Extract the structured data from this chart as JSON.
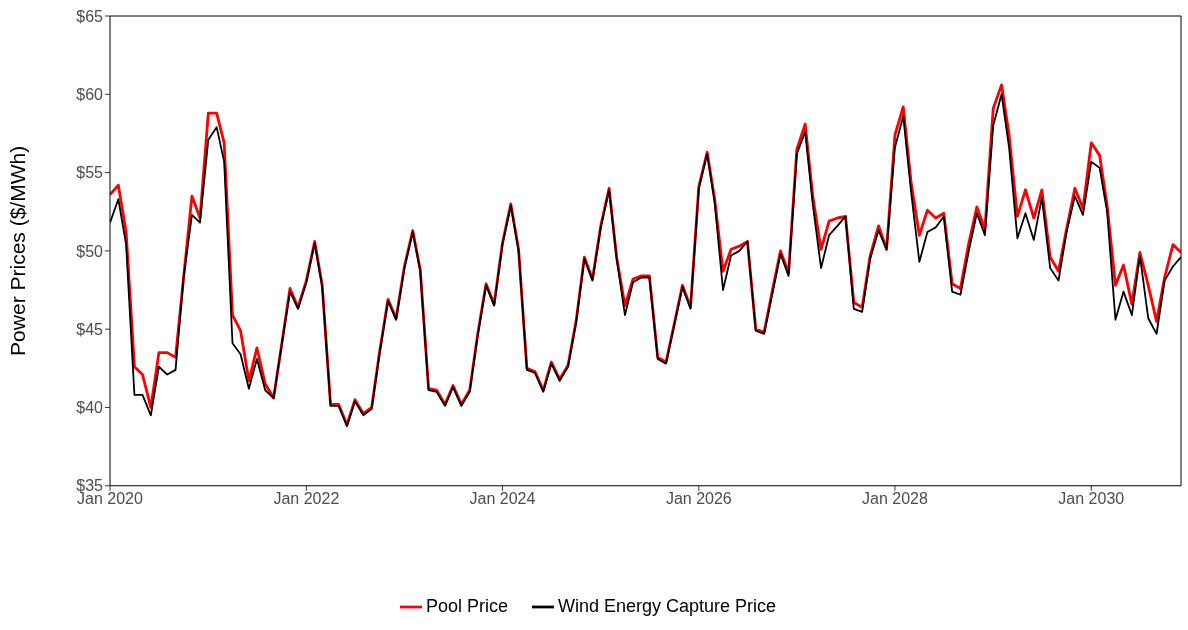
{
  "chart_data": {
    "type": "line",
    "ylabel": "Power Prices ($/MWh)",
    "x": [
      "2020-01",
      "2020-02",
      "2020-03",
      "2020-04",
      "2020-05",
      "2020-06",
      "2020-07",
      "2020-08",
      "2020-09",
      "2020-10",
      "2020-11",
      "2020-12",
      "2021-01",
      "2021-02",
      "2021-03",
      "2021-04",
      "2021-05",
      "2021-06",
      "2021-07",
      "2021-08",
      "2021-09",
      "2021-10",
      "2021-11",
      "2021-12",
      "2022-01",
      "2022-02",
      "2022-03",
      "2022-04",
      "2022-05",
      "2022-06",
      "2022-07",
      "2022-08",
      "2022-09",
      "2022-10",
      "2022-11",
      "2022-12",
      "2023-01",
      "2023-02",
      "2023-03",
      "2023-04",
      "2023-05",
      "2023-06",
      "2023-07",
      "2023-08",
      "2023-09",
      "2023-10",
      "2023-11",
      "2023-12",
      "2024-01",
      "2024-02",
      "2024-03",
      "2024-04",
      "2024-05",
      "2024-06",
      "2024-07",
      "2024-08",
      "2024-09",
      "2024-10",
      "2024-11",
      "2024-12",
      "2025-01",
      "2025-02",
      "2025-03",
      "2025-04",
      "2025-05",
      "2025-06",
      "2025-07",
      "2025-08",
      "2025-09",
      "2025-10",
      "2025-11",
      "2025-12",
      "2026-01",
      "2026-02",
      "2026-03",
      "2026-04",
      "2026-05",
      "2026-06",
      "2026-07",
      "2026-08",
      "2026-09",
      "2026-10",
      "2026-11",
      "2026-12",
      "2027-01",
      "2027-02",
      "2027-03",
      "2027-04",
      "2027-05",
      "2027-06",
      "2027-07",
      "2027-08",
      "2027-09",
      "2027-10",
      "2027-11",
      "2027-12",
      "2028-01",
      "2028-02",
      "2028-03",
      "2028-04",
      "2028-05",
      "2028-06",
      "2028-07",
      "2028-08",
      "2028-09",
      "2028-10",
      "2028-11",
      "2028-12",
      "2029-01",
      "2029-02",
      "2029-03",
      "2029-04",
      "2029-05",
      "2029-06",
      "2029-07",
      "2029-08",
      "2029-09",
      "2029-10",
      "2029-11",
      "2029-12",
      "2030-01",
      "2030-02",
      "2030-03",
      "2030-04",
      "2030-05",
      "2030-06",
      "2030-07",
      "2030-08",
      "2030-09",
      "2030-10",
      "2030-11",
      "2030-12"
    ],
    "series": [
      {
        "name": "Pool Price",
        "color": "#ff0000",
        "values": [
          53.6,
          54.2,
          51.2,
          42.6,
          42.1,
          40.0,
          43.5,
          43.5,
          43.2,
          48.3,
          53.5,
          52.1,
          58.8,
          58.8,
          56.9,
          45.9,
          44.9,
          41.7,
          43.8,
          41.5,
          40.6,
          44.0,
          47.6,
          46.4,
          48.1,
          50.6,
          47.8,
          40.2,
          40.2,
          38.9,
          40.5,
          39.6,
          40.0,
          43.6,
          46.9,
          45.7,
          49.0,
          51.3,
          48.8,
          41.2,
          41.1,
          40.2,
          41.4,
          40.2,
          41.1,
          44.7,
          47.9,
          46.6,
          50.5,
          53.0,
          50.1,
          42.5,
          42.3,
          41.1,
          42.9,
          41.8,
          42.7,
          45.5,
          49.6,
          48.2,
          51.6,
          54.0,
          49.6,
          46.5,
          48.2,
          48.4,
          48.4,
          43.2,
          42.9,
          45.3,
          47.8,
          46.4,
          54.1,
          56.3,
          53.3,
          48.7,
          50.1,
          50.3,
          50.6,
          45.0,
          44.8,
          47.4,
          50.0,
          48.6,
          56.5,
          58.1,
          53.5,
          50.1,
          51.9,
          52.1,
          52.2,
          46.7,
          46.4,
          49.7,
          51.6,
          50.1,
          57.4,
          59.2,
          54.4,
          51.0,
          52.6,
          52.1,
          52.4,
          47.9,
          47.6,
          50.4,
          52.8,
          51.4,
          59.1,
          60.6,
          57.4,
          52.2,
          53.9,
          52.1,
          53.9,
          49.6,
          48.7,
          51.4,
          54.0,
          52.7,
          56.9,
          56.1,
          52.9,
          47.8,
          49.1,
          46.6,
          49.9,
          47.8,
          45.5,
          48.3,
          50.4,
          49.9
        ]
      },
      {
        "name": "Wind Energy Capture Price",
        "color": "#000000",
        "values": [
          51.8,
          53.3,
          50.4,
          40.8,
          40.8,
          39.5,
          42.6,
          42.1,
          42.4,
          48.3,
          52.3,
          51.8,
          57.1,
          57.9,
          55.7,
          44.1,
          43.4,
          41.2,
          43.1,
          41.1,
          40.6,
          44.0,
          47.4,
          46.3,
          48.0,
          50.5,
          47.7,
          40.1,
          40.1,
          38.8,
          40.4,
          39.5,
          39.9,
          43.5,
          46.8,
          45.6,
          48.9,
          51.2,
          48.7,
          41.1,
          41.0,
          40.1,
          41.3,
          40.1,
          41.0,
          44.6,
          47.8,
          46.5,
          50.4,
          52.9,
          50.0,
          42.4,
          42.2,
          41.0,
          42.8,
          41.7,
          42.6,
          45.4,
          49.5,
          48.1,
          51.5,
          53.9,
          49.5,
          45.9,
          48.0,
          48.3,
          48.3,
          43.1,
          42.8,
          45.2,
          47.7,
          46.3,
          54.0,
          56.2,
          53.1,
          47.5,
          49.7,
          50.0,
          50.6,
          44.9,
          44.7,
          47.2,
          49.8,
          48.4,
          56.2,
          57.6,
          53.0,
          48.9,
          51.0,
          51.6,
          52.2,
          46.3,
          46.1,
          49.5,
          51.3,
          50.1,
          56.6,
          58.6,
          53.8,
          49.3,
          51.2,
          51.5,
          52.2,
          47.4,
          47.2,
          49.9,
          52.4,
          51.0,
          58.0,
          60.0,
          56.6,
          50.8,
          52.4,
          50.7,
          53.4,
          48.9,
          48.1,
          51.2,
          53.5,
          52.3,
          55.7,
          55.3,
          52.5,
          45.6,
          47.4,
          45.9,
          49.7,
          45.7,
          44.7,
          48.1,
          49.0,
          49.6
        ]
      }
    ],
    "xlim": [
      "2020-01",
      "2030-12"
    ],
    "xticks": [
      {
        "value": "2020-01",
        "label": "Jan 2020"
      },
      {
        "value": "2022-01",
        "label": "Jan 2022"
      },
      {
        "value": "2024-01",
        "label": "Jan 2024"
      },
      {
        "value": "2026-01",
        "label": "Jan 2026"
      },
      {
        "value": "2028-01",
        "label": "Jan 2028"
      },
      {
        "value": "2030-01",
        "label": "Jan 2030"
      }
    ],
    "ylim": [
      35,
      65
    ],
    "yticks": [
      {
        "value": 35,
        "label": "$35"
      },
      {
        "value": 40,
        "label": "$40"
      },
      {
        "value": 45,
        "label": "$45"
      },
      {
        "value": 50,
        "label": "$50"
      },
      {
        "value": 55,
        "label": "$55"
      },
      {
        "value": 60,
        "label": "$60"
      },
      {
        "value": 65,
        "label": "$65"
      }
    ],
    "grid": false,
    "legend": "bottom",
    "marker": "none",
    "line_style": "solid"
  }
}
